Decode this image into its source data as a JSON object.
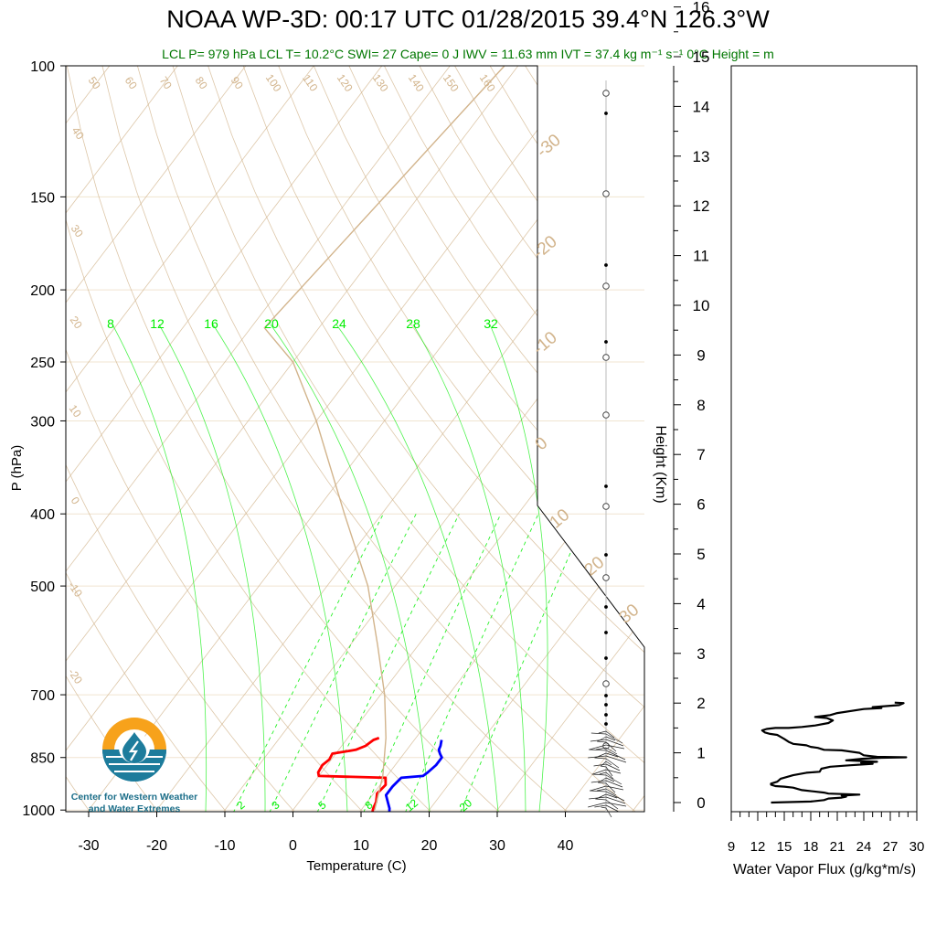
{
  "header": {
    "title": "NOAA WP-3D: 00:17 UTC 01/28/2015  39.4°N 126.3°W",
    "stats": "LCL P= 979 hPa  LCL T= 10.2°C  SWI= 27  Cape= 0 J  IWV = 11.63 mm  IVT = 37.4 kg m⁻¹ s⁻¹  0°C Height =  m"
  },
  "logo": {
    "line1": "Center for Western Weather",
    "line2": "and Water Extremes"
  },
  "colors": {
    "temperature": "#ff0000",
    "dewpoint": "#0000ff",
    "isotherm_adiabat": "#d2b48c",
    "mixing_ratio": "#00ee00",
    "logo_orange": "#f7a21b",
    "logo_teal": "#1d7c9c",
    "header_green": "#007700"
  },
  "chart_data": [
    {
      "type": "line",
      "subtype": "skew-T log-P sounding",
      "xlabel": "Temperature (C)",
      "ylabel": "P (hPa)",
      "xlim": [
        -34,
        50
      ],
      "ylim": [
        1050,
        100
      ],
      "y_scale": "log",
      "x_ticks": [
        -30,
        -20,
        -10,
        0,
        10,
        20,
        30,
        40
      ],
      "y_ticks": [
        100,
        150,
        200,
        250,
        300,
        400,
        500,
        700,
        850,
        1000
      ],
      "skewed_isotherm_labels": [
        "-40",
        "-30",
        "-20",
        "-10",
        "0",
        "10",
        "20",
        "30"
      ],
      "dry_adiabat_labels": [
        "50",
        "60",
        "70",
        "80",
        "90",
        "100",
        "110",
        "120",
        "130",
        "140",
        "150",
        "160"
      ],
      "moist_adiabat_labels": [
        "40",
        "30",
        "20",
        "10",
        "0",
        "-10",
        "-20"
      ],
      "mixing_ratio_labels_top": [
        "8",
        "12",
        "16",
        "20",
        "24",
        "28",
        "32"
      ],
      "mixing_ratio_labels_bottom": [
        "2",
        "3",
        "5",
        "8",
        "12",
        "20"
      ],
      "series": [
        {
          "name": "Temperature",
          "points": [
            [
              12,
              1010
            ],
            [
              11.6,
              995
            ],
            [
              11.3,
              975
            ],
            [
              10.5,
              950
            ],
            [
              10.8,
              925
            ],
            [
              10,
              905
            ],
            [
              0,
              900
            ],
            [
              -0.5,
              890
            ],
            [
              -0.7,
              870
            ],
            [
              -0.3,
              855
            ],
            [
              -0.5,
              840
            ],
            [
              1,
              835
            ],
            [
              2.5,
              830
            ],
            [
              3.5,
              820
            ],
            [
              4,
              805
            ],
            [
              4.6,
              800
            ]
          ]
        },
        {
          "name": "Dewpoint",
          "points": [
            [
              14.5,
              1010
            ],
            [
              14,
              995
            ],
            [
              13,
              975
            ],
            [
              12,
              955
            ],
            [
              12,
              930
            ],
            [
              12.3,
              905
            ],
            [
              15.3,
              900
            ],
            [
              15.6,
              890
            ],
            [
              16,
              870
            ],
            [
              16,
              850
            ],
            [
              15.3,
              840
            ],
            [
              14.7,
              830
            ],
            [
              14.5,
              820
            ],
            [
              14,
              805
            ]
          ]
        },
        {
          "name": "Parcel",
          "points": [
            [
              12,
              1000
            ],
            [
              9.4,
              900
            ],
            [
              5.6,
              800
            ],
            [
              0.6,
              700
            ],
            [
              -6,
              600
            ],
            [
              -14,
              500
            ],
            [
              -25.5,
              400
            ],
            [
              -40,
              300
            ],
            [
              -50,
              250
            ],
            [
              -58,
              225
            ],
            [
              -52,
              100
            ]
          ]
        }
      ]
    },
    {
      "type": "line",
      "subtype": "height-axis wind barb column",
      "ylabel": "Height (Km)",
      "ylim": [
        -0.3,
        16.6
      ],
      "y_ticks": [
        0,
        1,
        2,
        3,
        4,
        5,
        6,
        7,
        8,
        9,
        10,
        11,
        12,
        13,
        14,
        15,
        16
      ]
    },
    {
      "type": "line",
      "subtype": "profile",
      "xlabel": "Water Vapor Flux (g/kg*m/s)",
      "xlim": [
        9,
        30
      ],
      "x_ticks": [
        9,
        12,
        15,
        18,
        21,
        24,
        27,
        30
      ],
      "y_units": "km",
      "series": [
        {
          "name": "",
          "points": [
            [
              13.5,
              0
            ],
            [
              18,
              0.02
            ],
            [
              19.5,
              0.05
            ],
            [
              20,
              0.08
            ],
            [
              21.5,
              0.1
            ],
            [
              22,
              0.12
            ],
            [
              21.5,
              0.14
            ],
            [
              23.5,
              0.16
            ],
            [
              20,
              0.18
            ],
            [
              19.5,
              0.2
            ],
            [
              17,
              0.25
            ],
            [
              16,
              0.3
            ],
            [
              15,
              0.32
            ],
            [
              14,
              0.33
            ],
            [
              13.5,
              0.36
            ],
            [
              13.5,
              0.38
            ],
            [
              14.2,
              0.42
            ],
            [
              14.6,
              0.48
            ],
            [
              16,
              0.55
            ],
            [
              17.5,
              0.6
            ],
            [
              19,
              0.62
            ],
            [
              19.2,
              0.68
            ],
            [
              20.2,
              0.72
            ],
            [
              22.5,
              0.75
            ],
            [
              25,
              0.78
            ],
            [
              23.7,
              0.8
            ],
            [
              25.5,
              0.82
            ],
            [
              22,
              0.85
            ],
            [
              23.8,
              0.88
            ],
            [
              26,
              0.9
            ],
            [
              28.8,
              0.91
            ],
            [
              25.5,
              0.92
            ],
            [
              24,
              0.95
            ],
            [
              23.5,
              1.0
            ],
            [
              21.5,
              1.05
            ],
            [
              19.5,
              1.06
            ],
            [
              18.8,
              1.1
            ],
            [
              18,
              1.12
            ],
            [
              17.5,
              1.15
            ],
            [
              16,
              1.18
            ],
            [
              15.5,
              1.22
            ],
            [
              15,
              1.28
            ],
            [
              14.6,
              1.32
            ],
            [
              14.2,
              1.36
            ],
            [
              13.4,
              1.38
            ],
            [
              12.8,
              1.41
            ],
            [
              12.5,
              1.45
            ],
            [
              13,
              1.48
            ],
            [
              14,
              1.5
            ],
            [
              15.5,
              1.5
            ],
            [
              17,
              1.52
            ],
            [
              18.5,
              1.55
            ],
            [
              20,
              1.6
            ],
            [
              20.5,
              1.65
            ],
            [
              19.8,
              1.7
            ],
            [
              18.5,
              1.72
            ],
            [
              20.2,
              1.76
            ],
            [
              21,
              1.8
            ],
            [
              24,
              1.88
            ],
            [
              26,
              1.9
            ],
            [
              25,
              1.92
            ],
            [
              28,
              1.96
            ],
            [
              28.5,
              2.0
            ],
            [
              27.5,
              2.01
            ]
          ]
        }
      ]
    }
  ]
}
